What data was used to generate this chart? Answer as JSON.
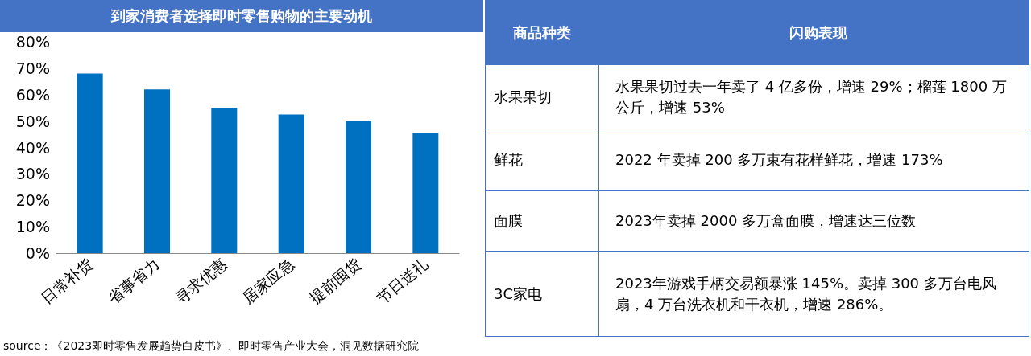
{
  "chart_data": [
    {
      "type": "bar",
      "title": "到家消费者选择即时零售购物的主要动机",
      "categories": [
        "日常补货",
        "省事省力",
        "寻求优惠",
        "居家应急",
        "提前囤货",
        "节日送礼"
      ],
      "values": [
        68,
        62,
        55,
        52.5,
        50,
        45.5
      ],
      "color": "#0070c0",
      "ylim": [
        0,
        80
      ],
      "yticks": [
        {
          "value": 0,
          "label": "0%"
        },
        {
          "value": 10,
          "label": "10%"
        },
        {
          "value": 20,
          "label": "20%"
        },
        {
          "value": 30,
          "label": "30%"
        },
        {
          "value": 40,
          "label": "40%"
        },
        {
          "value": 50,
          "label": "50%"
        },
        {
          "value": 60,
          "label": "60%"
        },
        {
          "value": 70,
          "label": "70%"
        },
        {
          "value": 80,
          "label": "80%"
        }
      ],
      "grid": false,
      "annotations": [
        "source：《2023即时零售发展趋势白皮书》、即时零售产业大会，洞见数据研究院"
      ]
    },
    {
      "type": "other",
      "annotations": [
        "商品种类",
        "闪购表现",
        "水果果切",
        "水果果切过去一年卖了 4 亿多份，增速 29%；榴莲 1800 万公斤，增速 53%",
        "鲜花",
        "2022 年卖掉 200 多万束有花样鲜花，增速 173%",
        "面膜",
        "2023年卖掉 2000 多万盒面膜，增速达三位数",
        "3C家电",
        "2023年游戏手柄交易额暴涨 145%。卖掉 300 多万台电风扇，4 万台洗衣机和干衣机，增速 286%。"
      ]
    }
  ]
}
